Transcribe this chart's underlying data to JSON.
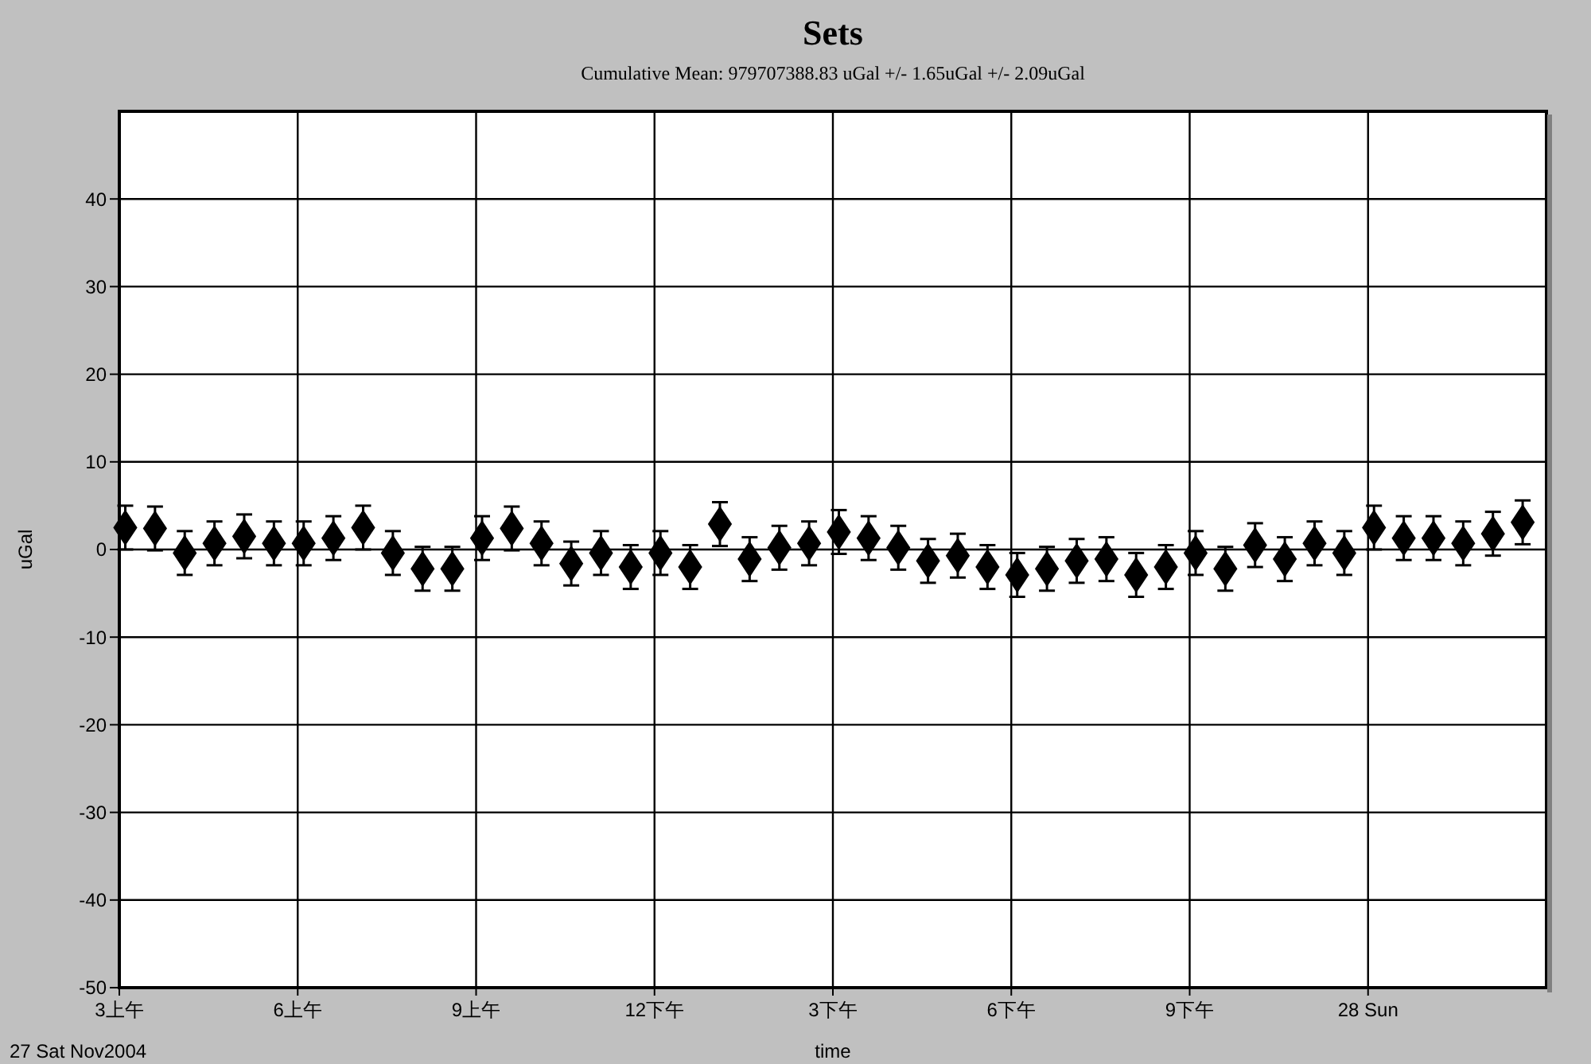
{
  "chart_data": {
    "type": "scatter",
    "title": "Sets",
    "subtitle": "Cumulative Mean:  979707388.83 uGal   +/- 1.65uGal +/-  2.09uGal",
    "xlabel": "time",
    "ylabel": "uGal",
    "annotations": [
      "27 Sat Nov2004"
    ],
    "x": [
      "2004-11-27T03:06",
      "2004-11-27T03:36",
      "2004-11-27T04:06",
      "2004-11-27T04:36",
      "2004-11-27T05:06",
      "2004-11-27T05:36",
      "2004-11-27T06:06",
      "2004-11-27T06:36",
      "2004-11-27T07:06",
      "2004-11-27T07:36",
      "2004-11-27T08:06",
      "2004-11-27T08:36",
      "2004-11-27T09:06",
      "2004-11-27T09:36",
      "2004-11-27T10:06",
      "2004-11-27T10:36",
      "2004-11-27T11:06",
      "2004-11-27T11:36",
      "2004-11-27T12:06",
      "2004-11-27T12:36",
      "2004-11-27T13:06",
      "2004-11-27T13:36",
      "2004-11-27T14:06",
      "2004-11-27T14:36",
      "2004-11-27T15:06",
      "2004-11-27T15:36",
      "2004-11-27T16:06",
      "2004-11-27T16:36",
      "2004-11-27T17:06",
      "2004-11-27T17:36",
      "2004-11-27T18:06",
      "2004-11-27T18:36",
      "2004-11-27T19:06",
      "2004-11-27T19:36",
      "2004-11-27T20:06",
      "2004-11-27T20:36",
      "2004-11-27T21:06",
      "2004-11-27T21:36",
      "2004-11-27T22:06",
      "2004-11-27T22:36",
      "2004-11-27T23:06",
      "2004-11-27T23:36",
      "2004-11-28T00:06",
      "2004-11-28T00:36",
      "2004-11-28T01:06",
      "2004-11-28T01:36",
      "2004-11-28T02:06",
      "2004-11-28T02:36"
    ],
    "values": [
      2.5,
      2.4,
      -0.4,
      0.7,
      1.5,
      0.7,
      0.7,
      1.3,
      2.5,
      -0.4,
      -2.2,
      -2.2,
      1.3,
      2.4,
      0.7,
      -1.6,
      -0.4,
      -2.0,
      -0.4,
      -2.0,
      2.9,
      -1.1,
      0.2,
      0.7,
      2.0,
      1.3,
      0.2,
      -1.3,
      -0.7,
      -2.0,
      -2.9,
      -2.2,
      -1.3,
      -1.1,
      -2.9,
      -2.0,
      -0.4,
      -2.2,
      0.5,
      -1.1,
      0.7,
      -0.4,
      2.5,
      1.3,
      1.3,
      0.7,
      1.8,
      3.1
    ],
    "errors": [
      2.5,
      2.5,
      2.5,
      2.5,
      2.5,
      2.5,
      2.5,
      2.5,
      2.5,
      2.5,
      2.5,
      2.5,
      2.5,
      2.5,
      2.5,
      2.5,
      2.5,
      2.5,
      2.5,
      2.5,
      2.5,
      2.5,
      2.5,
      2.5,
      2.5,
      2.5,
      2.5,
      2.5,
      2.5,
      2.5,
      2.5,
      2.5,
      2.5,
      2.5,
      2.5,
      2.5,
      2.5,
      2.5,
      2.5,
      2.5,
      2.5,
      2.5,
      2.5,
      2.5,
      2.5,
      2.5,
      2.5,
      2.5
    ],
    "color": "#000000",
    "marker": "diamond",
    "xlim": [
      "2004-11-27T03:00",
      "2004-11-28T03:00"
    ],
    "xticks": [
      {
        "value": "2004-11-27T03:00",
        "label": "3上午"
      },
      {
        "value": "2004-11-27T06:00",
        "label": "6上午"
      },
      {
        "value": "2004-11-27T09:00",
        "label": "9上午"
      },
      {
        "value": "2004-11-27T12:00",
        "label": "12下午"
      },
      {
        "value": "2004-11-27T15:00",
        "label": "3下午"
      },
      {
        "value": "2004-11-27T18:00",
        "label": "6下午"
      },
      {
        "value": "2004-11-27T21:00",
        "label": "9下午"
      },
      {
        "value": "2004-11-28T00:00",
        "label": "28 Sun"
      }
    ],
    "ylim": [
      -50,
      50
    ],
    "yticks": [
      -50,
      -40,
      -30,
      -20,
      -10,
      0,
      10,
      20,
      30,
      40
    ],
    "grid": true
  }
}
